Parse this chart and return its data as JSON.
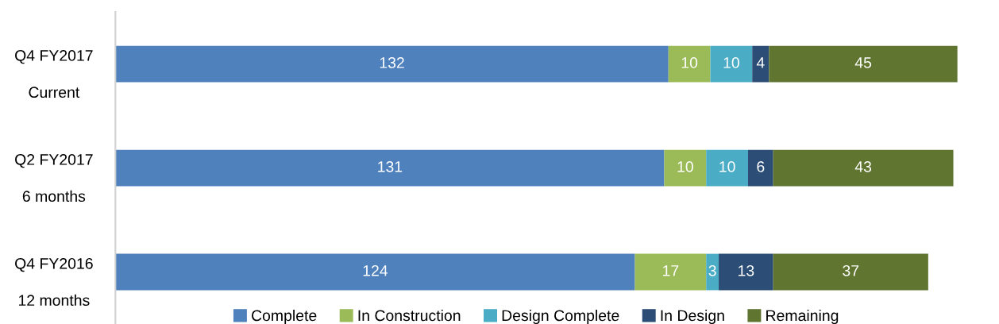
{
  "chart_data": {
    "type": "bar",
    "orientation": "horizontal",
    "stacked": true,
    "data_labels": true,
    "legend": "bottom",
    "grid": false,
    "categories": [
      "Q4 FY2017\nCurrent",
      "Q2 FY2017\n6 months",
      "Q4 FY2016\n12 months"
    ],
    "series": [
      {
        "name": "Complete",
        "color": "#4f81bd",
        "values": [
          132,
          131,
          124
        ]
      },
      {
        "name": "In Construction",
        "color": "#9bbb59",
        "values": [
          10,
          10,
          17
        ]
      },
      {
        "name": "Design Complete",
        "color": "#4bacc6",
        "values": [
          10,
          10,
          3
        ]
      },
      {
        "name": "In Design",
        "color": "#2c4d75",
        "values": [
          4,
          6,
          13
        ]
      },
      {
        "name": "Remaining",
        "color": "#5f7530",
        "values": [
          45,
          43,
          37
        ]
      }
    ]
  }
}
